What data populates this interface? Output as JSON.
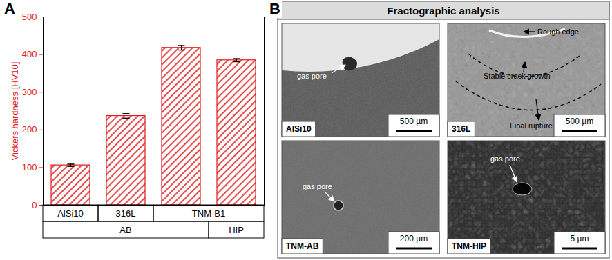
{
  "chart_data": {
    "type": "bar",
    "categories": [
      "AlSi10",
      "316L",
      "TNM-B1",
      "TNM-B1"
    ],
    "condition": [
      "AB",
      "AB",
      "AB",
      "HIP"
    ],
    "values": [
      106,
      237,
      418,
      385
    ],
    "errors": [
      3,
      6,
      6,
      4
    ],
    "color": "#e31a1c",
    "y_label": "Vickers hardness [HV10]",
    "ylim": [
      0,
      500
    ],
    "yticks": [
      0,
      100,
      200,
      300,
      400,
      500
    ],
    "grid": false
  },
  "panel_labels": [
    "A",
    "B"
  ],
  "fractography": {
    "title": "Fractographic analysis",
    "images": [
      {
        "label": "AlSi10",
        "scale_bar": "500 µm",
        "annotations": [
          "gas pore"
        ]
      },
      {
        "label": "316L",
        "scale_bar": "500 µm",
        "annotations": [
          "Rough edge",
          "Stable crack growth",
          "Final rupture"
        ]
      },
      {
        "label": "TNM-AB",
        "scale_bar": "200 µm",
        "annotations": [
          "gas pore"
        ]
      },
      {
        "label": "TNM-HIP",
        "scale_bar": "5 µm",
        "annotations": [
          "gas pore"
        ]
      }
    ]
  }
}
